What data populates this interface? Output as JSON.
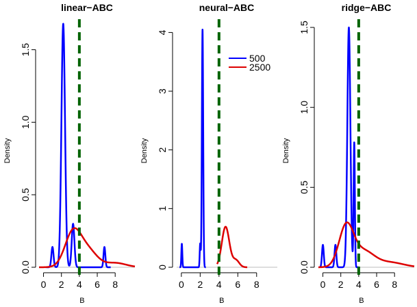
{
  "chart_data": [
    {
      "type": "line",
      "title": "linear−ABC",
      "xlabel": "B",
      "ylabel": "Density",
      "xlim": [
        -0.5,
        10.2
      ],
      "ylim": [
        0,
        1.72
      ],
      "x_ticks": [
        0,
        2,
        4,
        6,
        8
      ],
      "y_ticks": [
        0.0,
        0.5,
        1.0,
        1.5
      ],
      "y_tick_labels": [
        "0.0",
        "0.5",
        "1.0",
        "1.5"
      ],
      "reference_line": {
        "x": 4,
        "color": "#006400",
        "style": "dashed"
      },
      "series": [
        {
          "name": "500",
          "color": "#0000ff",
          "peaks": [
            {
              "center": 1.0,
              "height": 0.14,
              "sd": 0.12
            },
            {
              "center": 2.2,
              "height": 1.68,
              "sd": 0.2
            },
            {
              "center": 3.3,
              "height": 0.3,
              "sd": 0.15
            },
            {
              "center": 6.8,
              "height": 0.14,
              "sd": 0.1
            }
          ],
          "x_range": [
            0.3,
            7.5
          ]
        },
        {
          "name": "2500",
          "color": "#dd0000",
          "peaks": [
            {
              "center": 3.3,
              "height": 0.24,
              "sd": 0.9
            },
            {
              "center": 5.0,
              "height": 0.11,
              "sd": 1.0
            },
            {
              "center": 8.0,
              "height": 0.03,
              "sd": 1.2
            }
          ],
          "x_range": [
            -0.5,
            10.2
          ]
        }
      ]
    },
    {
      "type": "line",
      "title": "neural−ABC",
      "xlabel": "B",
      "ylabel": "Density",
      "xlim": [
        -0.5,
        10.2
      ],
      "ylim": [
        0,
        4.25
      ],
      "x_ticks": [
        0,
        2,
        4,
        6,
        8
      ],
      "y_ticks": [
        0,
        1,
        2,
        3,
        4
      ],
      "y_tick_labels": [
        "0",
        "1",
        "2",
        "3",
        "4"
      ],
      "reference_line": {
        "x": 4,
        "color": "#006400",
        "style": "dashed"
      },
      "legend": {
        "placement": "top-right",
        "entries": [
          "500",
          "2500"
        ]
      },
      "series": [
        {
          "name": "500",
          "color": "#0000ff",
          "peaks": [
            {
              "center": 0.05,
              "height": 0.4,
              "sd": 0.05
            },
            {
              "center": 2.0,
              "height": 0.4,
              "sd": 0.05
            },
            {
              "center": 2.25,
              "height": 4.05,
              "sd": 0.07
            }
          ],
          "x_range": [
            -0.2,
            2.6
          ]
        },
        {
          "name": "2500",
          "color": "#dd0000",
          "peaks": [
            {
              "center": 4.7,
              "height": 0.69,
              "sd": 0.4
            },
            {
              "center": 5.8,
              "height": 0.12,
              "sd": 0.35
            }
          ],
          "x_range": [
            3.8,
            7.0
          ]
        }
      ]
    },
    {
      "type": "line",
      "title": "ridge−ABC",
      "xlabel": "B",
      "ylabel": "Density",
      "xlim": [
        -0.5,
        10.2
      ],
      "ylim": [
        0,
        1.56
      ],
      "x_ticks": [
        0,
        2,
        4,
        6,
        8
      ],
      "y_ticks": [
        0.0,
        0.5,
        1.0,
        1.5
      ],
      "y_tick_labels": [
        "0.0",
        "0.5",
        "1.0",
        "1.5"
      ],
      "reference_line": {
        "x": 4,
        "color": "#006400",
        "style": "dashed"
      },
      "series": [
        {
          "name": "500",
          "color": "#0000ff",
          "peaks": [
            {
              "center": 0.0,
              "height": 0.14,
              "sd": 0.1
            },
            {
              "center": 1.4,
              "height": 0.14,
              "sd": 0.1
            },
            {
              "center": 2.9,
              "height": 1.5,
              "sd": 0.17
            },
            {
              "center": 3.5,
              "height": 0.78,
              "sd": 0.07
            }
          ],
          "x_range": [
            -0.3,
            4.0
          ]
        },
        {
          "name": "2500",
          "color": "#dd0000",
          "peaks": [
            {
              "center": 2.6,
              "height": 0.25,
              "sd": 0.8
            },
            {
              "center": 4.5,
              "height": 0.1,
              "sd": 1.2
            },
            {
              "center": 7.5,
              "height": 0.03,
              "sd": 1.5
            }
          ],
          "x_range": [
            -0.5,
            10.2
          ]
        }
      ]
    }
  ]
}
